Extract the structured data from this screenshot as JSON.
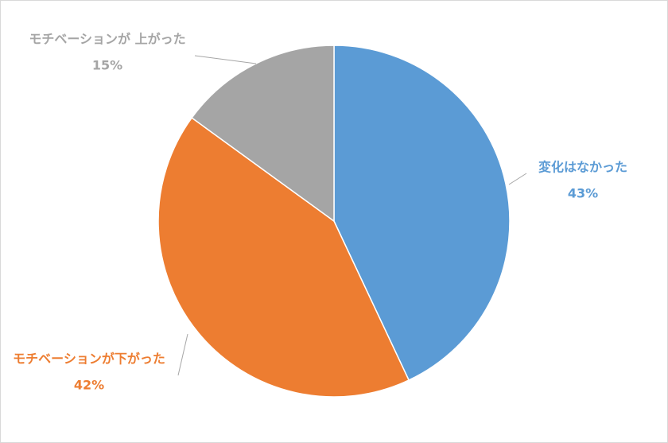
{
  "chart_data": {
    "type": "pie",
    "categories": [
      "変化はなかった",
      "モチベーションが下がった",
      "モチベーションが 上がった"
    ],
    "values": [
      43,
      42,
      15
    ],
    "value_labels": [
      "43%",
      "42%",
      "15%"
    ],
    "colors": [
      "#5b9bd5",
      "#ed7d31",
      "#a5a5a5"
    ]
  }
}
